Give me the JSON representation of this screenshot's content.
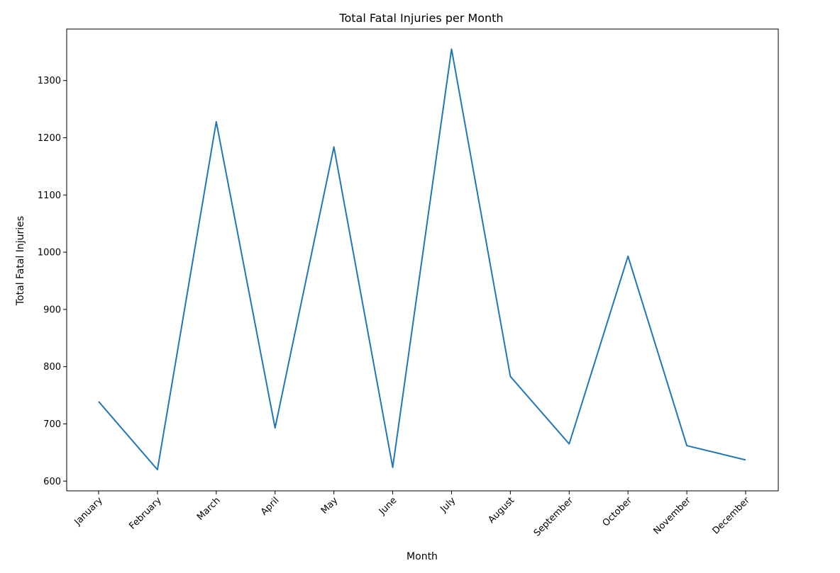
{
  "chart_data": {
    "type": "line",
    "title": "Total Fatal Injuries per Month",
    "xlabel": "Month",
    "ylabel": "Total Fatal Injuries",
    "categories": [
      "January",
      "February",
      "March",
      "April",
      "May",
      "June",
      "July",
      "August",
      "September",
      "October",
      "November",
      "December"
    ],
    "series": [
      {
        "values": [
          739,
          620,
          1228,
          693,
          1184,
          624,
          1355,
          783,
          665,
          993,
          662,
          637
        ]
      }
    ],
    "ylim": [
      583,
      1390
    ],
    "yticks": [
      600,
      700,
      800,
      900,
      1000,
      1100,
      1200,
      1300
    ],
    "grid": false,
    "line_color": "#1f77b4"
  }
}
